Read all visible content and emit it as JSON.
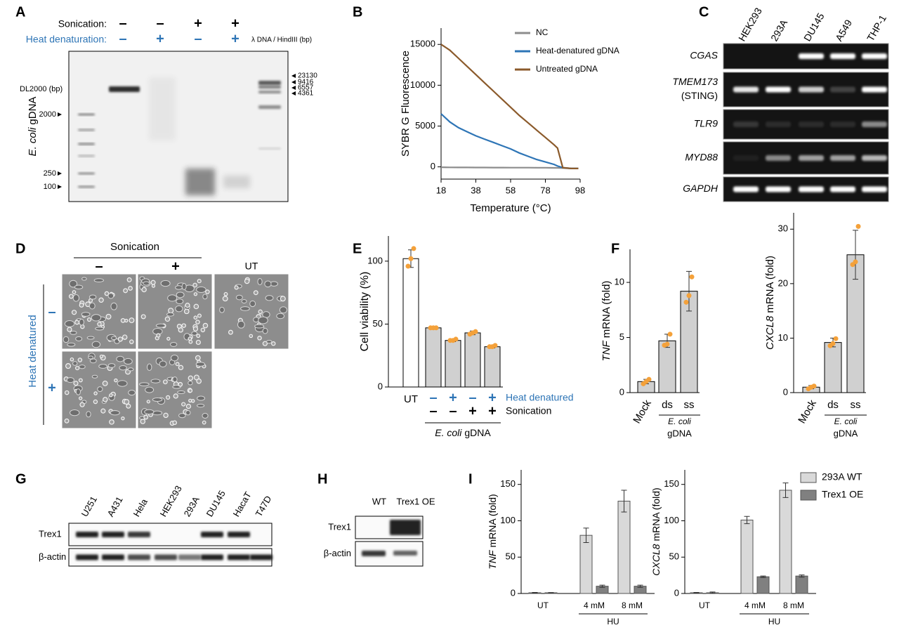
{
  "figure": {
    "panel_letters": [
      "A",
      "B",
      "C",
      "D",
      "E",
      "F",
      "G",
      "H",
      "I"
    ]
  },
  "gel_a": {
    "sonication_label": "Sonication:",
    "heat_label": "Heat denaturation:",
    "sonication": [
      "–",
      "–",
      "+",
      "+"
    ],
    "heat": [
      "–",
      "+",
      "–",
      "+"
    ],
    "ladder_left": {
      "name": "DL2000 (bp)",
      "sizes": [
        2000,
        250,
        100
      ]
    },
    "ladder_right": {
      "name": "λ DNA / HindIII (bp)",
      "sizes": [
        23130,
        9416,
        6557,
        4361
      ]
    },
    "ylabel_italic": "E. coli",
    "ylabel": "gDNA"
  },
  "gel_c": {
    "lanes": [
      "HEK293",
      "293A",
      "DU145",
      "A549",
      "THP-1"
    ],
    "rows": [
      {
        "gene": "CGAS"
      },
      {
        "gene": "TMEM173",
        "note": "(STING)"
      },
      {
        "gene": "TLR9"
      },
      {
        "gene": "MYD88"
      },
      {
        "gene": "GAPDH"
      }
    ]
  },
  "micrographs_d": {
    "sonication_label": "Sonication",
    "sonication": [
      "–",
      "+"
    ],
    "ut_label": "UT",
    "heat_label": "Heat denatured",
    "heat": [
      "–",
      "+"
    ]
  },
  "blot_g": {
    "lanes": [
      "U251",
      "A431",
      "Hela",
      "HEK293",
      "293A",
      "DU145",
      "HacaT",
      "T47D"
    ],
    "rows": [
      "Trex1",
      "β-actin"
    ]
  },
  "blot_h": {
    "lanes": [
      "WT",
      "Trex1 OE"
    ],
    "rows": [
      "Trex1",
      "β-actin"
    ]
  },
  "chart_data": [
    {
      "type": "line",
      "ylabel": "SYBR G Fluorescence",
      "xlabel": "Temperature (°C)",
      "x": [
        18,
        23,
        28,
        33,
        38,
        43,
        48,
        53,
        58,
        63,
        68,
        73,
        78,
        83,
        85,
        88,
        93,
        97
      ],
      "xlim": [
        18,
        98
      ],
      "xticks": [
        18,
        38,
        58,
        78,
        98
      ],
      "ylim": [
        -1500,
        17000
      ],
      "yticks": [
        0,
        5000,
        10000,
        15000
      ],
      "series": [
        {
          "name": "NC",
          "color": "#8c8c8c",
          "values": [
            -50,
            -60,
            -70,
            -70,
            -80,
            -80,
            -90,
            -90,
            -100,
            -100,
            -100,
            -110,
            -110,
            -120,
            -120,
            -150,
            -200,
            -200
          ]
        },
        {
          "name": "Heat-denatured gDNA",
          "color": "#2e75b6",
          "values": [
            6500,
            5500,
            4800,
            4300,
            3800,
            3400,
            3000,
            2600,
            2200,
            1700,
            1300,
            900,
            600,
            300,
            100,
            -100,
            -200,
            -200
          ]
        },
        {
          "name": "Untreated gDNA",
          "color": "#8b5a2b",
          "values": [
            15000,
            14300,
            13300,
            12300,
            11300,
            10300,
            9300,
            8300,
            7300,
            6300,
            5400,
            4500,
            3600,
            2700,
            2300,
            -100,
            -200,
            -200
          ]
        }
      ]
    },
    {
      "type": "bar",
      "ylabel": "Cell viability (%)",
      "categories": [
        "UT",
        null,
        null,
        null,
        null
      ],
      "values": [
        102,
        47,
        37,
        43,
        32
      ],
      "errors": [
        7,
        1,
        1,
        1.5,
        1
      ],
      "points": [
        [
          96,
          102,
          110
        ],
        [
          47,
          47,
          47
        ],
        [
          37,
          37,
          38
        ],
        [
          42,
          43,
          44
        ],
        [
          32,
          32,
          33
        ]
      ],
      "colors": [
        "#ffffff",
        "#d0d0d0",
        "#d0d0d0",
        "#d0d0d0",
        "#d0d0d0"
      ],
      "point_color": "#f4a13a",
      "ylim": [
        0,
        120
      ],
      "yticks": [
        0,
        50,
        100
      ],
      "condition_rows": [
        {
          "name": "Heat denatured",
          "color": "#2e75b6",
          "marks": [
            null,
            "–",
            "+",
            "–",
            "+"
          ]
        },
        {
          "name": "Sonication",
          "color": "#000000",
          "marks": [
            null,
            "–",
            "–",
            "+",
            "+"
          ]
        }
      ],
      "group_label": {
        "italic": "E. coli",
        "text": "gDNA"
      }
    },
    {
      "type": "bar",
      "ylabel_gene": "TNF",
      "ylabel": "mRNA (fold)",
      "categories": [
        "Mock",
        "ds",
        "ss"
      ],
      "values": [
        1.0,
        4.7,
        9.2
      ],
      "errors": [
        0.2,
        0.6,
        1.8
      ],
      "points": [
        [
          0.8,
          1.0,
          1.2
        ],
        [
          4.3,
          4.4,
          5.3
        ],
        [
          8.2,
          8.8,
          10.5
        ]
      ],
      "color": "#d0d0d0",
      "point_color": "#f4a13a",
      "ylim": [
        0,
        13
      ],
      "yticks": [
        0,
        5,
        10
      ],
      "group_label": {
        "italic": "E. coli",
        "text": "gDNA"
      }
    },
    {
      "type": "bar",
      "ylabel_gene": "CXCL8",
      "ylabel": "mRNA (fold)",
      "categories": [
        "Mock",
        "ds",
        "ss"
      ],
      "values": [
        1.0,
        9.2,
        25.3
      ],
      "errors": [
        0.3,
        0.8,
        4.5
      ],
      "points": [
        [
          0.7,
          1.0,
          1.2
        ],
        [
          8.6,
          9.0,
          9.9
        ],
        [
          23.5,
          24.0,
          30.5
        ]
      ],
      "color": "#d0d0d0",
      "point_color": "#f4a13a",
      "ylim": [
        0,
        33
      ],
      "yticks": [
        0,
        10,
        20,
        30
      ],
      "group_label": {
        "italic": "E. coli",
        "text": "gDNA"
      }
    },
    {
      "type": "grouped_bar",
      "ylabel_gene": "TNF",
      "ylabel": "mRNA (fold)",
      "categories": [
        "UT",
        "4 mM",
        "8 mM"
      ],
      "group_label": "HU",
      "series": [
        {
          "color": "#d9d9d9",
          "values": [
            1,
            80,
            127
          ],
          "errors": [
            0.5,
            10,
            15
          ]
        },
        {
          "color": "#808080",
          "values": [
            1,
            10,
            10
          ],
          "errors": [
            0.3,
            1.5,
            1.5
          ]
        }
      ],
      "ylim": [
        0,
        170
      ],
      "yticks": [
        0,
        50,
        100,
        150
      ]
    },
    {
      "type": "grouped_bar",
      "ylabel_gene": "CXCL8",
      "ylabel": "mRNA (fold)",
      "categories": [
        "UT",
        "4 mM",
        "8 mM"
      ],
      "group_label": "HU",
      "series": [
        {
          "name": "293A WT",
          "color": "#d9d9d9",
          "values": [
            1,
            101,
            142
          ],
          "errors": [
            0.5,
            5,
            10
          ]
        },
        {
          "name": "Trex1 OE",
          "color": "#808080",
          "values": [
            1,
            23,
            24
          ],
          "errors": [
            1,
            1,
            1.5
          ]
        }
      ],
      "ylim": [
        0,
        170
      ],
      "yticks": [
        0,
        50,
        100,
        150
      ]
    }
  ]
}
